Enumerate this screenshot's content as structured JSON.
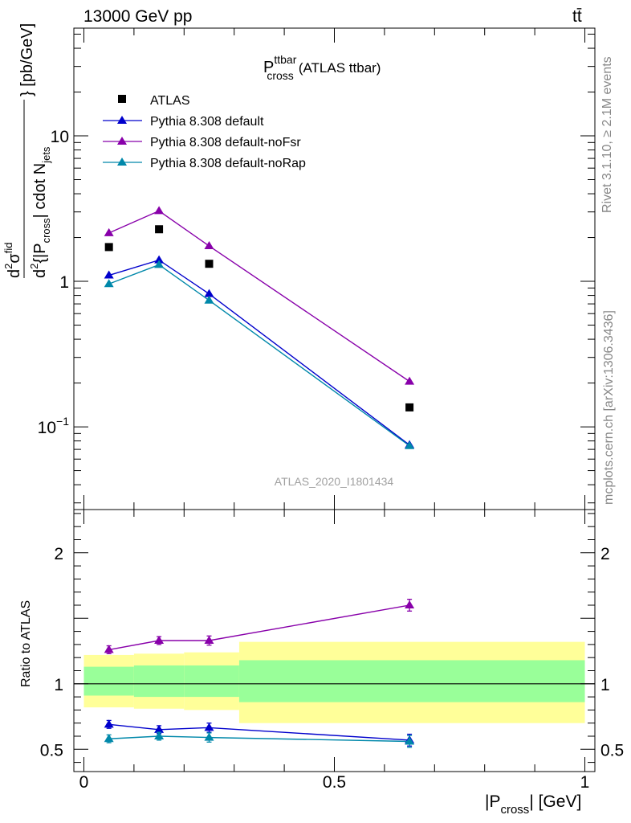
{
  "header": {
    "energy_label": "13000 GeV pp",
    "process_label": "tt̄"
  },
  "side_labels": {
    "rivet": "Rivet 3.1.10, ≥ 2.1M events",
    "mcplots": "mcplots.cern.ch [arXiv:1306.3436]"
  },
  "colors": {
    "data": "#000000",
    "default": "#0000cc",
    "noFsr": "#8800aa",
    "noRap": "#0088aa",
    "band_inner": "#99ff99",
    "band_outer": "#ffff99"
  },
  "chart_data": [
    {
      "type": "scatter",
      "title_main": "P",
      "title_sup": "ttbar",
      "title_sub": "cross",
      "title_suffix": "(ATLAS ttbar)",
      "analysis_label": "ATLAS_2020_I1801434",
      "ylabel": "d²σ^fid / d²{|P_cross| cdot N_jets} [pb/GeV]",
      "ylabel_parts": {
        "num_a": "d",
        "num_sup": "2",
        "num_b": "σ",
        "num_fid": "fid",
        "den_a": "d",
        "den_sup": "2",
        "den_b": "{|P",
        "den_cross": "cross",
        "den_c": "| cdot N",
        "den_jets": "jets",
        "unit": "} [pb/GeV]"
      },
      "yscale": "log",
      "ylim": [
        0.027,
        55
      ],
      "yticks": [
        {
          "value": 0.1,
          "label": "10",
          "sup": "−1"
        },
        {
          "value": 1,
          "label": "1",
          "sup": ""
        },
        {
          "value": 10,
          "label": "10",
          "sup": ""
        }
      ],
      "x": [
        0.05,
        0.15,
        0.25,
        0.65
      ],
      "series": [
        {
          "name": "ATLAS",
          "key": "data",
          "marker": "square",
          "values": [
            1.72,
            2.28,
            1.32,
            0.136
          ]
        },
        {
          "name": "Pythia 8.308 default",
          "key": "default",
          "marker": "triangle",
          "values": [
            1.1,
            1.4,
            0.82,
            0.075
          ]
        },
        {
          "name": "Pythia 8.308 default-noFsr",
          "key": "noFsr",
          "marker": "triangle",
          "values": [
            2.15,
            3.05,
            1.75,
            0.205
          ]
        },
        {
          "name": "Pythia 8.308 default-noRap",
          "key": "noRap",
          "marker": "triangle",
          "values": [
            0.96,
            1.3,
            0.74,
            0.074
          ]
        }
      ],
      "legend_position": "top-left"
    },
    {
      "type": "scatter",
      "ylabel": "Ratio to ATLAS",
      "ylim": [
        0.33,
        2.33
      ],
      "yticks": [
        {
          "value": 0.5,
          "label": "0.5"
        },
        {
          "value": 1,
          "label": "1"
        },
        {
          "value": 2,
          "label": "2"
        }
      ],
      "xlim": [
        -0.02,
        1.02
      ],
      "xticks": [
        {
          "value": 0,
          "label": "0"
        },
        {
          "value": 0.5,
          "label": "0.5"
        },
        {
          "value": 1,
          "label": "1"
        }
      ],
      "xlabel": "|P_cross| [GeV]",
      "xlabel_parts": {
        "a": "|P",
        "sub": "cross",
        "b": "| [GeV]"
      },
      "bands": [
        {
          "x0": 0.0,
          "x1": 0.1,
          "inner": [
            0.91,
            1.13
          ],
          "outer": [
            0.82,
            1.22
          ]
        },
        {
          "x0": 0.1,
          "x1": 0.2,
          "inner": [
            0.9,
            1.14
          ],
          "outer": [
            0.81,
            1.23
          ]
        },
        {
          "x0": 0.2,
          "x1": 0.31,
          "inner": [
            0.9,
            1.14
          ],
          "outer": [
            0.8,
            1.24
          ]
        },
        {
          "x0": 0.31,
          "x1": 1.0,
          "inner": [
            0.86,
            1.18
          ],
          "outer": [
            0.7,
            1.32
          ]
        }
      ],
      "x": [
        0.05,
        0.15,
        0.25,
        0.65
      ],
      "series": [
        {
          "name": "Pythia 8.308 default",
          "key": "default",
          "values": [
            0.69,
            0.65,
            0.665,
            0.57
          ],
          "err": [
            0.03,
            0.03,
            0.035,
            0.045
          ]
        },
        {
          "name": "Pythia 8.308 default-noFsr",
          "key": "noFsr",
          "values": [
            1.26,
            1.33,
            1.33,
            1.6
          ],
          "err": [
            0.03,
            0.03,
            0.035,
            0.045
          ]
        },
        {
          "name": "Pythia 8.308 default-noRap",
          "key": "noRap",
          "values": [
            0.58,
            0.6,
            0.59,
            0.56
          ],
          "err": [
            0.03,
            0.03,
            0.035,
            0.045
          ]
        }
      ]
    }
  ]
}
